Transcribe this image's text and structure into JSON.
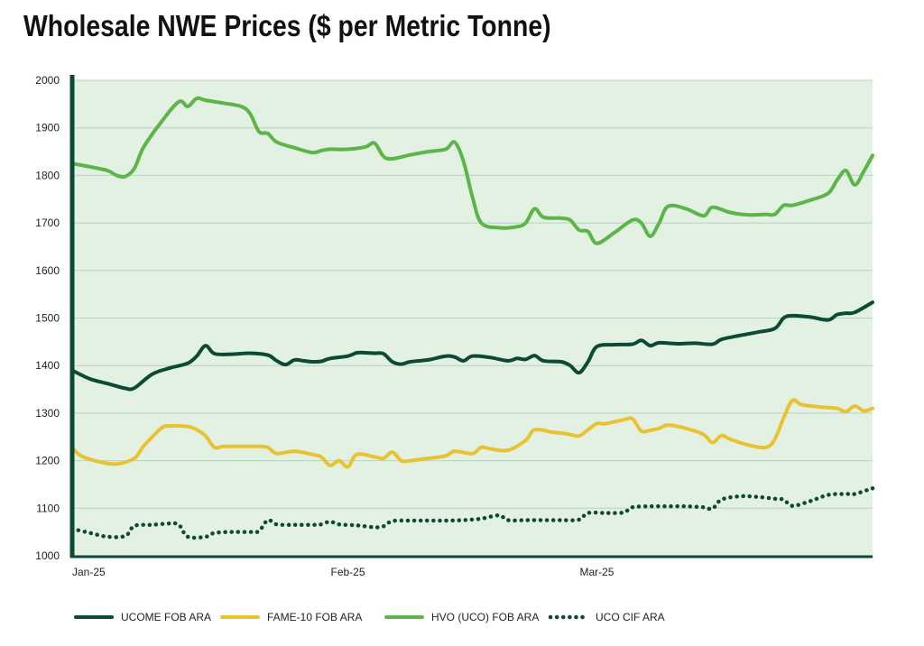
{
  "chart_data": {
    "type": "line",
    "title": "Wholesale NWE Prices ($ per Metric Tonne)",
    "xlabel": "",
    "ylabel": "",
    "x_ticks": [
      "Jan-25",
      "Feb-25",
      "Mar-25"
    ],
    "y_ticks": [
      1000,
      1100,
      1200,
      1300,
      1400,
      1500,
      1600,
      1700,
      1800,
      1900,
      2000
    ],
    "ylim": [
      1000,
      2000
    ],
    "x_range": [
      "2025-01-01",
      "2025-04-01"
    ],
    "grid": "horizontal",
    "legend_position": "bottom",
    "series": [
      {
        "name": "UCOME FOB ARA",
        "color": "#0d4a35",
        "style": "solid",
        "points": [
          [
            "2025-01-01",
            1390
          ],
          [
            "2025-01-03",
            1372
          ],
          [
            "2025-01-05",
            1362
          ],
          [
            "2025-01-07",
            1352
          ],
          [
            "2025-01-08",
            1353
          ],
          [
            "2025-01-10",
            1382
          ],
          [
            "2025-01-12",
            1395
          ],
          [
            "2025-01-14",
            1405
          ],
          [
            "2025-01-15",
            1420
          ],
          [
            "2025-01-16",
            1442
          ],
          [
            "2025-01-17",
            1425
          ],
          [
            "2025-01-19",
            1424
          ],
          [
            "2025-01-21",
            1426
          ],
          [
            "2025-01-23",
            1422
          ],
          [
            "2025-01-24",
            1410
          ],
          [
            "2025-01-25",
            1402
          ],
          [
            "2025-01-26",
            1412
          ],
          [
            "2025-01-27",
            1410
          ],
          [
            "2025-01-28",
            1408
          ],
          [
            "2025-01-29",
            1409
          ],
          [
            "2025-01-30",
            1415
          ],
          [
            "2025-02-01",
            1420
          ],
          [
            "2025-02-02",
            1427
          ],
          [
            "2025-02-03",
            1427
          ],
          [
            "2025-02-04",
            1426
          ],
          [
            "2025-02-05",
            1425
          ],
          [
            "2025-02-06",
            1408
          ],
          [
            "2025-02-07",
            1403
          ],
          [
            "2025-02-08",
            1408
          ],
          [
            "2025-02-10",
            1412
          ],
          [
            "2025-02-12",
            1420
          ],
          [
            "2025-02-13",
            1418
          ],
          [
            "2025-02-14",
            1410
          ],
          [
            "2025-02-15",
            1420
          ],
          [
            "2025-02-17",
            1417
          ],
          [
            "2025-02-19",
            1410
          ],
          [
            "2025-02-20",
            1415
          ],
          [
            "2025-02-21",
            1413
          ],
          [
            "2025-02-22",
            1421
          ],
          [
            "2025-02-23",
            1410
          ],
          [
            "2025-02-25",
            1408
          ],
          [
            "2025-02-26",
            1400
          ],
          [
            "2025-02-27",
            1385
          ],
          [
            "2025-02-28",
            1408
          ],
          [
            "2025-03-01",
            1440
          ],
          [
            "2025-03-03",
            1444
          ],
          [
            "2025-03-05",
            1445
          ],
          [
            "2025-03-06",
            1453
          ],
          [
            "2025-03-07",
            1442
          ],
          [
            "2025-03-08",
            1448
          ],
          [
            "2025-03-10",
            1446
          ],
          [
            "2025-03-12",
            1447
          ],
          [
            "2025-03-14",
            1445
          ],
          [
            "2025-03-15",
            1455
          ],
          [
            "2025-03-17",
            1463
          ],
          [
            "2025-03-19",
            1470
          ],
          [
            "2025-03-21",
            1478
          ],
          [
            "2025-03-22",
            1500
          ],
          [
            "2025-03-23",
            1505
          ],
          [
            "2025-03-25",
            1502
          ],
          [
            "2025-03-27",
            1496
          ],
          [
            "2025-03-28",
            1507
          ],
          [
            "2025-03-29",
            1510
          ],
          [
            "2025-03-30",
            1512
          ],
          [
            "2025-04-01",
            1533
          ]
        ]
      },
      {
        "name": "FAME-10 FOB ARA",
        "color": "#e8c233",
        "style": "solid",
        "points": [
          [
            "2025-01-01",
            1228
          ],
          [
            "2025-01-02",
            1210
          ],
          [
            "2025-01-04",
            1198
          ],
          [
            "2025-01-06",
            1193
          ],
          [
            "2025-01-08",
            1205
          ],
          [
            "2025-01-09",
            1230
          ],
          [
            "2025-01-11",
            1268
          ],
          [
            "2025-01-12",
            1273
          ],
          [
            "2025-01-14",
            1272
          ],
          [
            "2025-01-15",
            1265
          ],
          [
            "2025-01-16",
            1252
          ],
          [
            "2025-01-17",
            1228
          ],
          [
            "2025-01-18",
            1230
          ],
          [
            "2025-01-20",
            1230
          ],
          [
            "2025-01-22",
            1230
          ],
          [
            "2025-01-23",
            1228
          ],
          [
            "2025-01-24",
            1215
          ],
          [
            "2025-01-26",
            1220
          ],
          [
            "2025-01-28",
            1213
          ],
          [
            "2025-01-29",
            1208
          ],
          [
            "2025-01-30",
            1190
          ],
          [
            "2025-01-31",
            1200
          ],
          [
            "2025-02-01",
            1187
          ],
          [
            "2025-02-02",
            1213
          ],
          [
            "2025-02-04",
            1208
          ],
          [
            "2025-02-05",
            1205
          ],
          [
            "2025-02-06",
            1218
          ],
          [
            "2025-02-07",
            1200
          ],
          [
            "2025-02-08",
            1200
          ],
          [
            "2025-02-10",
            1205
          ],
          [
            "2025-02-12",
            1210
          ],
          [
            "2025-02-13",
            1220
          ],
          [
            "2025-02-15",
            1215
          ],
          [
            "2025-02-16",
            1228
          ],
          [
            "2025-02-17",
            1225
          ],
          [
            "2025-02-19",
            1222
          ],
          [
            "2025-02-21",
            1243
          ],
          [
            "2025-02-22",
            1265
          ],
          [
            "2025-02-24",
            1260
          ],
          [
            "2025-02-25",
            1258
          ],
          [
            "2025-02-26",
            1255
          ],
          [
            "2025-02-27",
            1252
          ],
          [
            "2025-02-28",
            1265
          ],
          [
            "2025-03-01",
            1278
          ],
          [
            "2025-03-02",
            1278
          ],
          [
            "2025-03-04",
            1286
          ],
          [
            "2025-03-05",
            1288
          ],
          [
            "2025-03-06",
            1262
          ],
          [
            "2025-03-07",
            1264
          ],
          [
            "2025-03-08",
            1268
          ],
          [
            "2025-03-09",
            1275
          ],
          [
            "2025-03-11",
            1268
          ],
          [
            "2025-03-13",
            1255
          ],
          [
            "2025-03-14",
            1238
          ],
          [
            "2025-03-15",
            1253
          ],
          [
            "2025-03-16",
            1245
          ],
          [
            "2025-03-18",
            1233
          ],
          [
            "2025-03-20",
            1228
          ],
          [
            "2025-03-21",
            1245
          ],
          [
            "2025-03-22",
            1290
          ],
          [
            "2025-03-23",
            1327
          ],
          [
            "2025-03-24",
            1318
          ],
          [
            "2025-03-26",
            1313
          ],
          [
            "2025-03-28",
            1310
          ],
          [
            "2025-03-29",
            1303
          ],
          [
            "2025-03-30",
            1315
          ],
          [
            "2025-03-31",
            1305
          ],
          [
            "2025-04-01",
            1310
          ]
        ]
      },
      {
        "name": "HVO (UCO) FOB ARA",
        "color": "#5cb548",
        "style": "solid",
        "points": [
          [
            "2025-01-01",
            1825
          ],
          [
            "2025-01-03",
            1818
          ],
          [
            "2025-01-05",
            1810
          ],
          [
            "2025-01-06",
            1800
          ],
          [
            "2025-01-07",
            1798
          ],
          [
            "2025-01-08",
            1815
          ],
          [
            "2025-01-09",
            1858
          ],
          [
            "2025-01-11",
            1912
          ],
          [
            "2025-01-13",
            1955
          ],
          [
            "2025-01-14",
            1945
          ],
          [
            "2025-01-15",
            1962
          ],
          [
            "2025-01-16",
            1958
          ],
          [
            "2025-01-18",
            1952
          ],
          [
            "2025-01-20",
            1945
          ],
          [
            "2025-01-21",
            1930
          ],
          [
            "2025-01-22",
            1892
          ],
          [
            "2025-01-23",
            1888
          ],
          [
            "2025-01-24",
            1870
          ],
          [
            "2025-01-26",
            1858
          ],
          [
            "2025-01-28",
            1848
          ],
          [
            "2025-01-29",
            1852
          ],
          [
            "2025-01-30",
            1855
          ],
          [
            "2025-02-01",
            1855
          ],
          [
            "2025-02-03",
            1860
          ],
          [
            "2025-02-04",
            1868
          ],
          [
            "2025-02-05",
            1840
          ],
          [
            "2025-02-06",
            1835
          ],
          [
            "2025-02-08",
            1843
          ],
          [
            "2025-02-10",
            1850
          ],
          [
            "2025-02-12",
            1855
          ],
          [
            "2025-02-13",
            1870
          ],
          [
            "2025-02-14",
            1830
          ],
          [
            "2025-02-15",
            1755
          ],
          [
            "2025-02-16",
            1700
          ],
          [
            "2025-02-18",
            1690
          ],
          [
            "2025-02-20",
            1692
          ],
          [
            "2025-02-21",
            1700
          ],
          [
            "2025-02-22",
            1730
          ],
          [
            "2025-02-23",
            1712
          ],
          [
            "2025-02-25",
            1710
          ],
          [
            "2025-02-26",
            1706
          ],
          [
            "2025-02-27",
            1685
          ],
          [
            "2025-02-28",
            1682
          ],
          [
            "2025-03-01",
            1657
          ],
          [
            "2025-03-03",
            1680
          ],
          [
            "2025-03-05",
            1706
          ],
          [
            "2025-03-06",
            1700
          ],
          [
            "2025-03-07",
            1672
          ],
          [
            "2025-03-08",
            1700
          ],
          [
            "2025-03-09",
            1735
          ],
          [
            "2025-03-11",
            1730
          ],
          [
            "2025-03-13",
            1715
          ],
          [
            "2025-03-14",
            1733
          ],
          [
            "2025-03-16",
            1722
          ],
          [
            "2025-03-18",
            1717
          ],
          [
            "2025-03-20",
            1718
          ],
          [
            "2025-03-21",
            1718
          ],
          [
            "2025-03-22",
            1737
          ],
          [
            "2025-03-23",
            1737
          ],
          [
            "2025-03-25",
            1748
          ],
          [
            "2025-03-27",
            1762
          ],
          [
            "2025-03-28",
            1790
          ],
          [
            "2025-03-29",
            1810
          ],
          [
            "2025-03-30",
            1780
          ],
          [
            "2025-03-31",
            1808
          ],
          [
            "2025-04-01",
            1842
          ]
        ]
      },
      {
        "name": "UCO CIF ARA",
        "color": "#0d4a35",
        "style": "dotted",
        "points": [
          [
            "2025-01-01",
            1057
          ],
          [
            "2025-01-03",
            1048
          ],
          [
            "2025-01-05",
            1040
          ],
          [
            "2025-01-07",
            1042
          ],
          [
            "2025-01-08",
            1063
          ],
          [
            "2025-01-10",
            1065
          ],
          [
            "2025-01-12",
            1068
          ],
          [
            "2025-01-13",
            1065
          ],
          [
            "2025-01-14",
            1040
          ],
          [
            "2025-01-16",
            1040
          ],
          [
            "2025-01-17",
            1048
          ],
          [
            "2025-01-19",
            1050
          ],
          [
            "2025-01-21",
            1050
          ],
          [
            "2025-01-22",
            1052
          ],
          [
            "2025-01-23",
            1075
          ],
          [
            "2025-01-24",
            1066
          ],
          [
            "2025-01-26",
            1065
          ],
          [
            "2025-01-28",
            1065
          ],
          [
            "2025-01-29",
            1066
          ],
          [
            "2025-01-30",
            1072
          ],
          [
            "2025-01-31",
            1066
          ],
          [
            "2025-02-02",
            1064
          ],
          [
            "2025-02-04",
            1060
          ],
          [
            "2025-02-05",
            1062
          ],
          [
            "2025-02-06",
            1073
          ],
          [
            "2025-02-08",
            1074
          ],
          [
            "2025-02-10",
            1074
          ],
          [
            "2025-02-12",
            1074
          ],
          [
            "2025-02-14",
            1075
          ],
          [
            "2025-02-16",
            1078
          ],
          [
            "2025-02-18",
            1085
          ],
          [
            "2025-02-19",
            1075
          ],
          [
            "2025-02-21",
            1075
          ],
          [
            "2025-02-23",
            1075
          ],
          [
            "2025-02-25",
            1075
          ],
          [
            "2025-02-27",
            1076
          ],
          [
            "2025-02-28",
            1090
          ],
          [
            "2025-03-02",
            1090
          ],
          [
            "2025-03-04",
            1091
          ],
          [
            "2025-03-05",
            1102
          ],
          [
            "2025-03-07",
            1104
          ],
          [
            "2025-03-09",
            1104
          ],
          [
            "2025-03-11",
            1104
          ],
          [
            "2025-03-13",
            1102
          ],
          [
            "2025-03-14",
            1099
          ],
          [
            "2025-03-15",
            1118
          ],
          [
            "2025-03-17",
            1125
          ],
          [
            "2025-03-19",
            1124
          ],
          [
            "2025-03-21",
            1120
          ],
          [
            "2025-03-22",
            1118
          ],
          [
            "2025-03-23",
            1105
          ],
          [
            "2025-03-25",
            1115
          ],
          [
            "2025-03-27",
            1128
          ],
          [
            "2025-03-29",
            1130
          ],
          [
            "2025-03-30",
            1130
          ],
          [
            "2025-04-01",
            1142
          ]
        ]
      }
    ]
  }
}
